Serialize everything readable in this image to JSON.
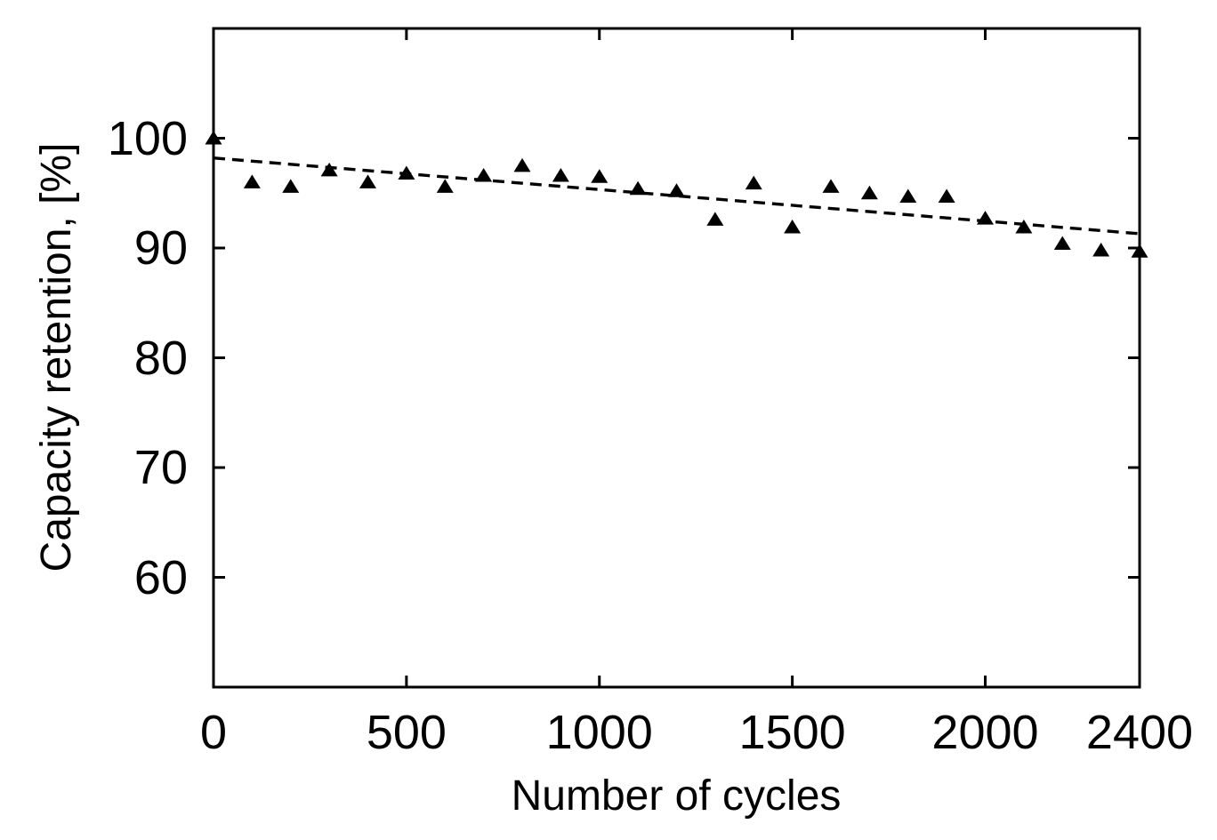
{
  "chart_data": {
    "type": "scatter",
    "title": "",
    "xlabel": "Number of cycles",
    "ylabel": "Capacity retention, [%]",
    "xlim": [
      0,
      2400
    ],
    "ylim": [
      50,
      110
    ],
    "xticks": [
      0,
      500,
      1000,
      1500,
      2000,
      2400
    ],
    "yticks": [
      60,
      70,
      80,
      90,
      100
    ],
    "grid": false,
    "legend": false,
    "background_color": "#ffffff",
    "axis_color": "#000000",
    "series": [
      {
        "name": "capacity-retention-points",
        "marker": "filled-triangle-up",
        "color": "#000000",
        "x": [
          0,
          100,
          200,
          300,
          400,
          500,
          600,
          700,
          800,
          900,
          1000,
          1100,
          1200,
          1300,
          1400,
          1500,
          1600,
          1700,
          1800,
          1900,
          2000,
          2100,
          2200,
          2300,
          2400
        ],
        "y": [
          100,
          96.0,
          95.6,
          97.1,
          96.0,
          96.8,
          95.6,
          96.6,
          97.5,
          96.6,
          96.5,
          95.4,
          95.2,
          92.6,
          95.9,
          91.9,
          95.6,
          95.0,
          94.7,
          94.7,
          92.7,
          91.9,
          90.4,
          89.8,
          89.7
        ]
      }
    ],
    "trend_line": {
      "name": "linear-fit",
      "style": "dashed",
      "color": "#000000",
      "x": [
        0,
        2400
      ],
      "y": [
        98.2,
        91.3
      ]
    }
  }
}
